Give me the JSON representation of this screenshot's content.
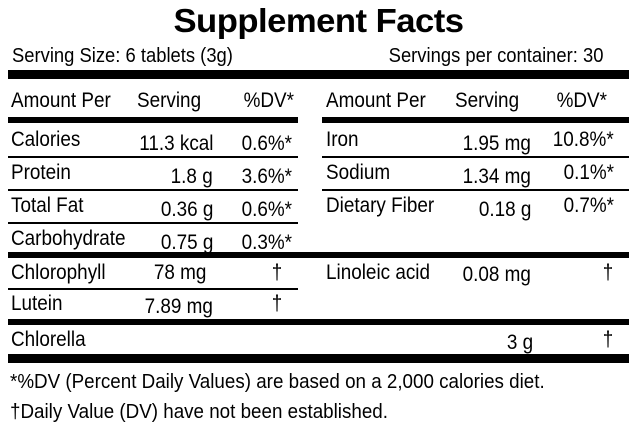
{
  "title": "Supplement Facts",
  "serving_size": "Serving Size: 6 tablets (3g)",
  "servings_per_container": "Servings per container: 30",
  "headers": {
    "left": {
      "amount_per": "Amount Per",
      "serving": "Serving",
      "dv": "%DV*"
    },
    "right": {
      "amount_per": "Amount Per",
      "serving": "Serving",
      "dv": "%DV*"
    }
  },
  "left_rows": [
    {
      "name": "Calories",
      "amount": "11.3 kcal",
      "dv": "0.6%*"
    },
    {
      "name": "Protein",
      "amount": "1.8 g",
      "dv": "3.6%*"
    },
    {
      "name": "Total Fat",
      "amount": "0.36 g",
      "dv": "0.6%*"
    },
    {
      "name": "Carbohydrate",
      "amount": "0.75 g",
      "dv": "0.3%*"
    },
    {
      "name": "Chlorophyll",
      "amount": "78 mg",
      "dv": "†"
    },
    {
      "name": "Lutein",
      "amount": "7.89 mg",
      "dv": "†"
    }
  ],
  "right_rows": [
    {
      "name": "Iron",
      "amount": "1.95 mg",
      "dv": "10.8%*"
    },
    {
      "name": "Sodium",
      "amount": "1.34 mg",
      "dv": "0.1%*"
    },
    {
      "name": "Dietary Fiber",
      "amount": "0.18 g",
      "dv": "0.7%*"
    },
    {
      "name": "Linoleic acid",
      "amount": "0.08 mg",
      "dv": "†"
    }
  ],
  "chlorella": {
    "name": "Chlorella",
    "amount": "3 g",
    "dv": "†"
  },
  "footnotes": {
    "dv_note": "*%DV (Percent Daily Values) are based on a 2,000 calories diet.",
    "dagger_symbol": "†",
    "dagger_note": "Daily Value (DV) have not been established."
  }
}
